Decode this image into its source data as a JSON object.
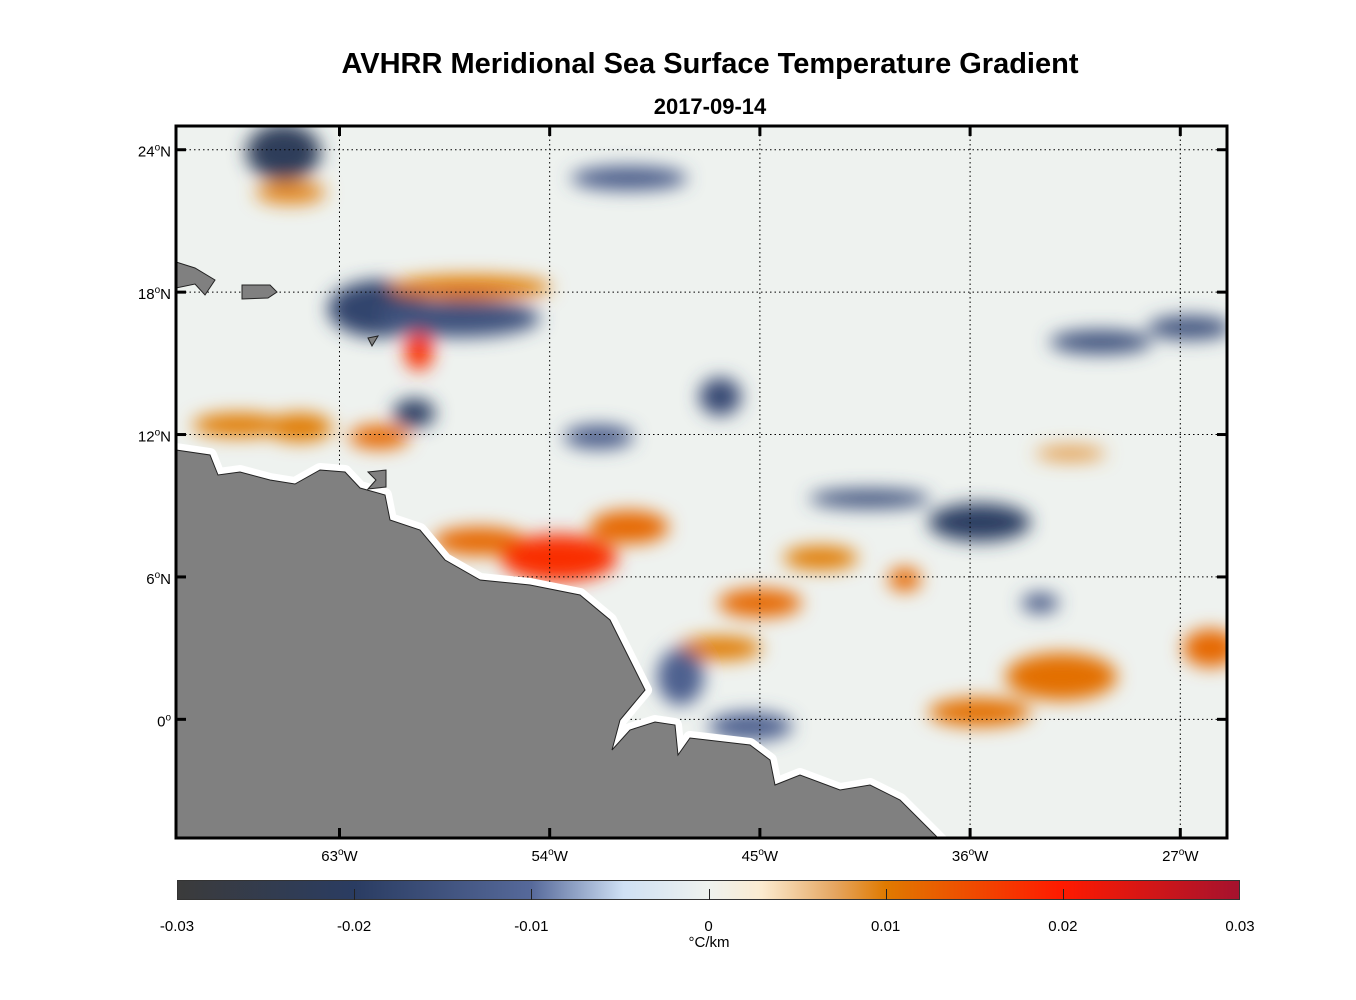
{
  "chart_data": {
    "type": "heatmap",
    "title": "AVHRR Meridional Sea Surface Temperature Gradient",
    "subtitle": "2017-09-14",
    "xlim": [
      -70,
      -25
    ],
    "ylim": [
      -5,
      25
    ],
    "grid": true,
    "x_ticks": [
      {
        "value": -63,
        "label": "63",
        "suffix": "W"
      },
      {
        "value": -54,
        "label": "54",
        "suffix": "W"
      },
      {
        "value": -45,
        "label": "45",
        "suffix": "W"
      },
      {
        "value": -36,
        "label": "36",
        "suffix": "W"
      },
      {
        "value": -27,
        "label": "27",
        "suffix": "W"
      }
    ],
    "y_ticks": [
      {
        "value": 24,
        "label": "24",
        "suffix": "N"
      },
      {
        "value": 18,
        "label": "18",
        "suffix": "N"
      },
      {
        "value": 12,
        "label": "12",
        "suffix": "N"
      },
      {
        "value": 6,
        "label": "6",
        "suffix": "N"
      },
      {
        "value": 0,
        "label": "0",
        "suffix": ""
      }
    ],
    "colorbar": {
      "label": "°C/km",
      "clim": [
        -0.03,
        0.03
      ],
      "ticks": [
        "-0.03",
        "-0.02",
        "-0.01",
        "0",
        "0.01",
        "0.02",
        "0.03"
      ],
      "tick_values": [
        -0.03,
        -0.02,
        -0.01,
        0,
        0.01,
        0.02,
        0.03
      ]
    },
    "features": [
      {
        "lon": -65.4,
        "lat": 23.9,
        "value": -0.022,
        "wlon": 1.6,
        "hlat": 1.2
      },
      {
        "lon": -65.1,
        "lat": 22.2,
        "value": 0.009,
        "wlon": 1.5,
        "hlat": 0.5
      },
      {
        "lon": -61.3,
        "lat": 17.3,
        "value": -0.018,
        "wlon": 2.2,
        "hlat": 1.2
      },
      {
        "lon": -57.9,
        "lat": 16.9,
        "value": -0.015,
        "wlon": 3.5,
        "hlat": 0.8
      },
      {
        "lon": -57.4,
        "lat": 18.2,
        "value": 0.01,
        "wlon": 3.5,
        "hlat": 0.5
      },
      {
        "lon": -59.6,
        "lat": 15.5,
        "value": 0.018,
        "wlon": 0.6,
        "hlat": 0.8
      },
      {
        "lon": -59.8,
        "lat": 12.9,
        "value": -0.02,
        "wlon": 0.9,
        "hlat": 0.6
      },
      {
        "lon": -61.3,
        "lat": 11.9,
        "value": 0.012,
        "wlon": 1.3,
        "hlat": 0.5
      },
      {
        "lon": -67.3,
        "lat": 12.4,
        "value": 0.01,
        "wlon": 2.0,
        "hlat": 0.5
      },
      {
        "lon": -64.7,
        "lat": 12.3,
        "value": 0.01,
        "wlon": 1.4,
        "hlat": 0.6
      },
      {
        "lon": -57.0,
        "lat": 7.5,
        "value": 0.012,
        "wlon": 2.0,
        "hlat": 0.6
      },
      {
        "lon": -53.6,
        "lat": 6.8,
        "value": 0.018,
        "wlon": 2.5,
        "hlat": 1.0
      },
      {
        "lon": -50.6,
        "lat": 8.1,
        "value": 0.012,
        "wlon": 1.7,
        "hlat": 0.7
      },
      {
        "lon": -45.0,
        "lat": 4.9,
        "value": 0.012,
        "wlon": 1.8,
        "hlat": 0.6
      },
      {
        "lon": -46.7,
        "lat": 3.0,
        "value": 0.01,
        "wlon": 1.8,
        "hlat": 0.5
      },
      {
        "lon": -42.4,
        "lat": 6.8,
        "value": 0.01,
        "wlon": 1.6,
        "hlat": 0.5
      },
      {
        "lon": -38.8,
        "lat": 5.9,
        "value": 0.012,
        "wlon": 0.7,
        "hlat": 0.5
      },
      {
        "lon": -35.6,
        "lat": 0.3,
        "value": 0.011,
        "wlon": 2.2,
        "hlat": 0.6
      },
      {
        "lon": -32.1,
        "lat": 1.8,
        "value": 0.011,
        "wlon": 2.4,
        "hlat": 1.0
      },
      {
        "lon": -25.7,
        "lat": 3.0,
        "value": 0.012,
        "wlon": 1.2,
        "hlat": 0.8
      },
      {
        "lon": -35.6,
        "lat": 8.3,
        "value": -0.02,
        "wlon": 2.2,
        "hlat": 0.8
      },
      {
        "lon": -40.3,
        "lat": 9.3,
        "value": -0.015,
        "wlon": 2.6,
        "hlat": 0.4
      },
      {
        "lon": -33.0,
        "lat": 4.9,
        "value": -0.014,
        "wlon": 0.8,
        "hlat": 0.4
      },
      {
        "lon": -46.7,
        "lat": 13.6,
        "value": -0.017,
        "wlon": 0.9,
        "hlat": 0.8
      },
      {
        "lon": -50.6,
        "lat": 22.8,
        "value": -0.013,
        "wlon": 2.5,
        "hlat": 0.5
      },
      {
        "lon": -51.9,
        "lat": 11.9,
        "value": -0.013,
        "wlon": 1.5,
        "hlat": 0.5
      },
      {
        "lon": -26.6,
        "lat": 16.5,
        "value": -0.015,
        "wlon": 1.8,
        "hlat": 0.5
      },
      {
        "lon": -30.4,
        "lat": 15.9,
        "value": -0.015,
        "wlon": 2.2,
        "hlat": 0.5
      },
      {
        "lon": -48.4,
        "lat": 1.8,
        "value": -0.012,
        "wlon": 1.0,
        "hlat": 1.2
      },
      {
        "lon": -45.4,
        "lat": -0.3,
        "value": -0.012,
        "wlon": 1.8,
        "hlat": 0.6
      },
      {
        "lon": -31.7,
        "lat": 11.2,
        "value": 0.008,
        "wlon": 1.5,
        "hlat": 0.3
      }
    ]
  }
}
